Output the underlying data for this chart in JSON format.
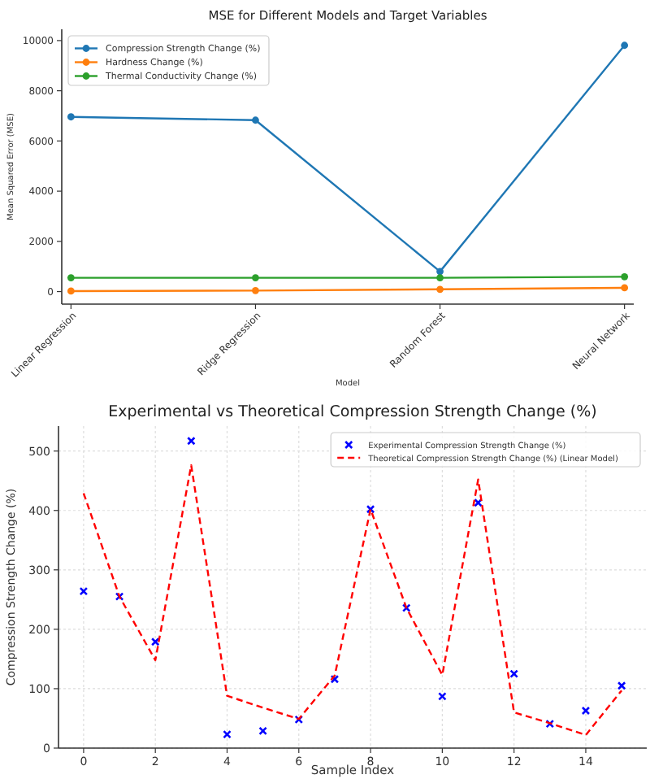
{
  "chart_data": [
    {
      "type": "line",
      "title": "MSE for Different Models and Target Variables",
      "xlabel": "Model",
      "ylabel": "Mean Squared Error (MSE)",
      "categories": [
        "Linear Regression",
        "Ridge Regression",
        "Random Forest",
        "Neural Network"
      ],
      "series": [
        {
          "name": "Compression Strength Change (%)",
          "color": "#1f77b4",
          "values": [
            6960,
            6830,
            800,
            9810
          ]
        },
        {
          "name": "Hardness Change (%)",
          "color": "#ff7f0e",
          "values": [
            20,
            40,
            90,
            150
          ]
        },
        {
          "name": "Thermal Conductivity Change (%)",
          "color": "#2ca02c",
          "values": [
            550,
            550,
            550,
            590
          ]
        }
      ],
      "ylim": [
        -500,
        10450
      ],
      "yticks": [
        0,
        2000,
        4000,
        6000,
        8000,
        10000
      ],
      "marker": "circle",
      "legend": "top left",
      "grid": false
    },
    {
      "type": "scatter",
      "title": "Experimental vs Theoretical Compression Strength Change (%)",
      "xlabel": "Sample Index",
      "ylabel": "Compression Strength Change (%)",
      "x": [
        0,
        1,
        2,
        3,
        4,
        5,
        6,
        7,
        8,
        9,
        10,
        11,
        12,
        13,
        14,
        15
      ],
      "series": [
        {
          "name": "Experimental Compression Strength Change (%)",
          "color": "#0000ff",
          "marker": "cross",
          "values": [
            264,
            255,
            179,
            517,
            23,
            29,
            48,
            116,
            402,
            236,
            87,
            413,
            125,
            41,
            63,
            105
          ]
        },
        {
          "name": "Theoretical Compression Strength Change (%) (Linear Model)",
          "type": "line",
          "color": "#ff0000",
          "line_style": "dashed",
          "marker": "none",
          "values": [
            429,
            255,
            148,
            476,
            88,
            68,
            49,
            122,
            402,
            236,
            123,
            452,
            60,
            42,
            22,
            97
          ]
        }
      ],
      "xlim": [
        -0.7,
        15.7
      ],
      "xticks": [
        0,
        2,
        4,
        6,
        8,
        10,
        12,
        14
      ],
      "ylim": [
        0,
        542
      ],
      "yticks": [
        0,
        100,
        200,
        300,
        400,
        500
      ],
      "legend": "top right",
      "grid": true
    }
  ]
}
